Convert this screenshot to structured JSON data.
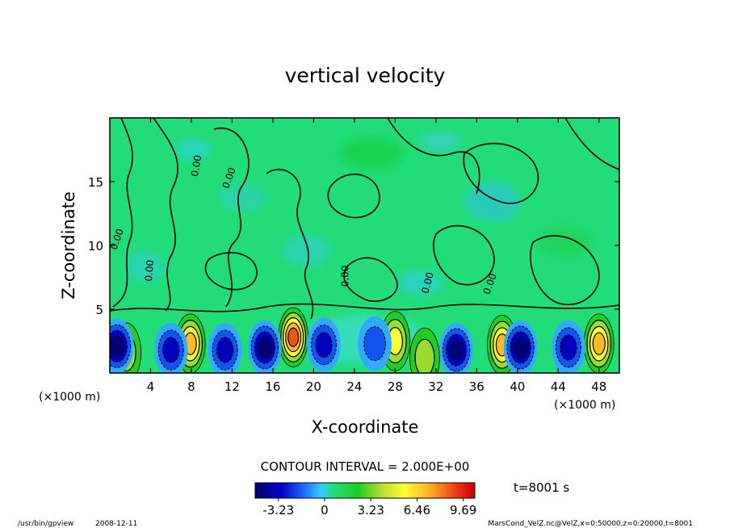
{
  "chart_data": {
    "type": "heatmap",
    "title": "vertical velocity",
    "xlabel": "X-coordinate",
    "ylabel": "Z-coordinate",
    "x_unit_left": "(×1000 m)",
    "x_unit_right": "(×1000 m)",
    "xlim": [
      0,
      50
    ],
    "ylim": [
      0,
      20
    ],
    "x_ticks": [
      4,
      8,
      12,
      16,
      20,
      24,
      28,
      32,
      36,
      40,
      44,
      48
    ],
    "y_ticks": [
      5,
      10,
      15
    ],
    "contour_interval": "CONTOUR INTERVAL = 2.000E+00",
    "time_label": "t=8001 s",
    "colorbar_ticks": [
      "-3.23",
      "0",
      "3.23",
      "6.46",
      "9.69"
    ],
    "colorbar_values": [
      -3.23,
      0,
      3.23,
      6.46,
      9.69
    ],
    "colorbar_range": [
      -4.85,
      10.5
    ],
    "contour_labels": [
      "0.00",
      "0.00",
      "0.00",
      "0.00",
      "0.00",
      "0.00",
      "0.00"
    ],
    "updrafts": [
      {
        "x": 1.6,
        "z": 1.6,
        "w": 3.0
      },
      {
        "x": 7.9,
        "z": 2.3,
        "w": 7.5
      },
      {
        "x": 18.0,
        "z": 2.8,
        "w": 10.0
      },
      {
        "x": 28.0,
        "z": 2.5,
        "w": 6.5
      },
      {
        "x": 30.9,
        "z": 1.2,
        "w": 4.0
      },
      {
        "x": 38.5,
        "z": 2.2,
        "w": 7.5
      },
      {
        "x": 48.0,
        "z": 2.3,
        "w": 8.0
      }
    ],
    "downdrafts": [
      {
        "x": 0.7,
        "z": 2.1,
        "w": -3.2
      },
      {
        "x": 6.0,
        "z": 1.8,
        "w": -2.6
      },
      {
        "x": 11.3,
        "z": 1.8,
        "w": -2.8
      },
      {
        "x": 15.2,
        "z": 2.0,
        "w": -3.0
      },
      {
        "x": 21.0,
        "z": 2.2,
        "w": -2.4
      },
      {
        "x": 26.0,
        "z": 2.3,
        "w": -1.8
      },
      {
        "x": 34.0,
        "z": 1.8,
        "w": -3.2
      },
      {
        "x": 40.3,
        "z": 2.0,
        "w": -3.0
      },
      {
        "x": 45.0,
        "z": 2.0,
        "w": -2.5
      }
    ]
  },
  "footer": {
    "program": "/usr/bin/gpview",
    "date": "2008-12-11",
    "source": "MarsCond_VelZ.nc@VelZ,x=0:50000,z=0:20000,t=8001"
  },
  "colors": {
    "background_field": "#22dd77",
    "axis": "#000000"
  }
}
